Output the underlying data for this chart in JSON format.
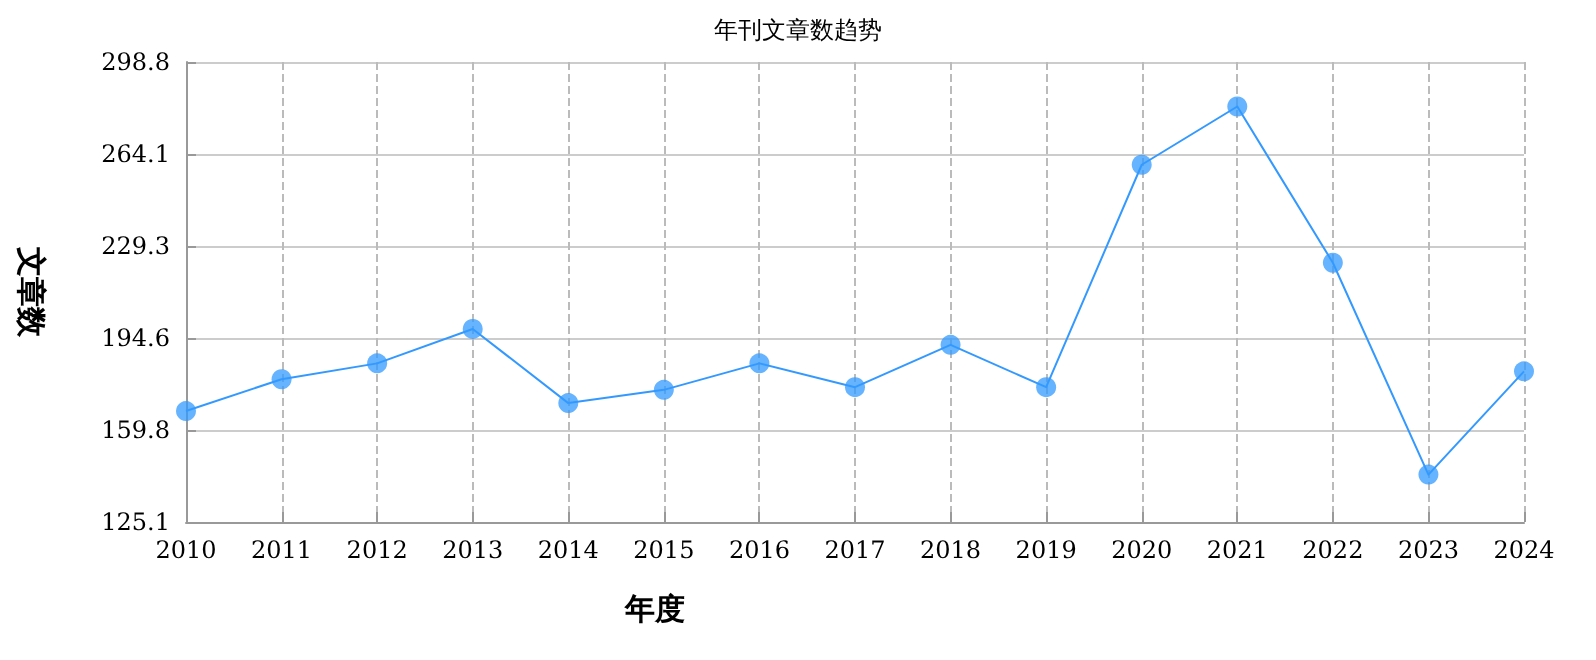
{
  "chart_data": {
    "type": "line",
    "title": "年刊文章数趋势",
    "xlabel": "年度",
    "ylabel": "文章数",
    "categories": [
      "2010",
      "2011",
      "2012",
      "2013",
      "2014",
      "2015",
      "2016",
      "2017",
      "2018",
      "2019",
      "2020",
      "2021",
      "2022",
      "2023",
      "2024"
    ],
    "series": [
      {
        "color": "#3399ff",
        "values": [
          167,
          179,
          185,
          198,
          170,
          175,
          185,
          176,
          192,
          176,
          260,
          282,
          223,
          143,
          182
        ]
      }
    ],
    "ylim": [
      125.1,
      298.8
    ],
    "yticks": [
      125.1,
      159.8,
      194.6,
      229.3,
      264.1,
      298.8
    ],
    "grid": true,
    "marker": "circle",
    "line_style": "solid"
  }
}
